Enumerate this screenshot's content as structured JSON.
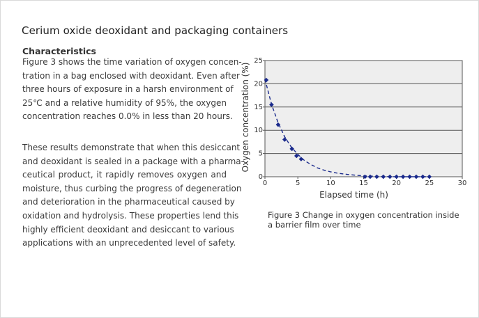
{
  "page": {
    "title": "Cerium oxide deoxidant and packaging containers",
    "section_heading": "Characteristics",
    "paragraph1_lines": [
      "Figure 3 shows the time variation of oxygen concen-",
      "tration in a bag enclosed with deoxidant. Even after",
      "three hours of exposure in a harsh environment of",
      "25℃ and a relative humidity of 95%, the oxygen",
      "concentration reaches 0.0% in less than 20 hours."
    ],
    "paragraph2_lines": [
      "These results demonstrate that when this desiccant",
      "and deoxidant is sealed in a package with a pharma-",
      "ceutical product, it rapidly removes oxygen and",
      "moisture, thus curbing the progress of degeneration",
      "and deterioration in the pharmaceutical caused by",
      "oxidation and hydrolysis. These properties lend this",
      "highly efficient deoxidant and desiccant to various",
      "applications with an unprecedented level of safety."
    ],
    "caption_lines": [
      "Figure 3 Change in oxygen concentration inside",
      "a barrier film over time"
    ]
  },
  "colors": {
    "series": "#1a2a8c",
    "plot_bg": "#eeeeee",
    "grid": "#555555",
    "text": "#333333"
  },
  "chart_data": {
    "type": "scatter",
    "title": "",
    "xlabel": "Elapsed time (h)",
    "ylabel": "Oxygen concentration (%)",
    "xlim": [
      0,
      30
    ],
    "ylim": [
      0,
      25
    ],
    "xticks": [
      0,
      5,
      10,
      15,
      20,
      25,
      30
    ],
    "yticks": [
      0,
      5,
      10,
      15,
      20,
      25
    ],
    "grid": true,
    "series": [
      {
        "marker": "diamond",
        "points": [
          [
            0.2,
            20.8
          ],
          [
            1.0,
            15.5
          ],
          [
            2.0,
            11.2
          ],
          [
            3.0,
            8.0
          ],
          [
            4.1,
            6.0
          ],
          [
            4.8,
            4.5
          ],
          [
            5.5,
            3.8
          ],
          [
            15.2,
            0.0
          ],
          [
            16.0,
            0.0
          ],
          [
            17.0,
            0.0
          ],
          [
            18.0,
            0.0
          ],
          [
            19.0,
            0.0
          ],
          [
            20.0,
            0.0
          ],
          [
            21.0,
            0.0
          ],
          [
            22.0,
            0.0
          ],
          [
            23.0,
            0.0
          ],
          [
            24.0,
            0.0
          ],
          [
            25.0,
            0.0
          ]
        ]
      }
    ],
    "trendline": {
      "style": "dashed",
      "points": [
        [
          0,
          21.0
        ],
        [
          1,
          15.6
        ],
        [
          2,
          11.6
        ],
        [
          3,
          8.6
        ],
        [
          4,
          6.4
        ],
        [
          5,
          4.8
        ],
        [
          6,
          3.5
        ],
        [
          7,
          2.6
        ],
        [
          8,
          1.9
        ],
        [
          9,
          1.4
        ],
        [
          10,
          1.05
        ],
        [
          11,
          0.78
        ],
        [
          12,
          0.58
        ],
        [
          13,
          0.43
        ],
        [
          14,
          0.3
        ],
        [
          15,
          0.2
        ],
        [
          16,
          0.14
        ],
        [
          17,
          0.09
        ],
        [
          18,
          0.05
        ],
        [
          19,
          0.02
        ],
        [
          20,
          0.0
        ],
        [
          25,
          0.0
        ]
      ]
    }
  }
}
